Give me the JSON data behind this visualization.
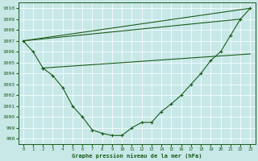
{
  "background_color": "#c8e8e8",
  "grid_color": "#ffffff",
  "line_color": "#1a5c1a",
  "ylim": [
    997.5,
    1010.5
  ],
  "xlim": [
    -0.5,
    23.5
  ],
  "yticks": [
    998,
    999,
    1000,
    1001,
    1002,
    1003,
    1004,
    1005,
    1006,
    1007,
    1008,
    1009,
    1010
  ],
  "xticks": [
    0,
    1,
    2,
    3,
    4,
    5,
    6,
    7,
    8,
    9,
    10,
    11,
    12,
    13,
    14,
    15,
    16,
    17,
    18,
    19,
    20,
    21,
    22,
    23
  ],
  "xlabel": "Graphe pression niveau de la mer (hPa)",
  "series_dip": {
    "x": [
      2,
      3,
      4,
      5,
      6,
      7,
      8,
      9,
      10,
      11,
      12,
      13,
      14,
      15,
      16,
      17,
      18,
      19,
      20,
      21,
      22,
      23
    ],
    "y": [
      1004.5,
      1003.8,
      1002.7,
      1001.0,
      1000.0,
      998.8,
      998.5,
      998.3,
      998.3,
      999.0,
      999.5,
      999.5,
      1000.5,
      1001.2,
      1002.0,
      1003.0,
      1004.0,
      1005.2,
      1006.0,
      1007.5,
      1009.0,
      1010.0
    ]
  },
  "series_upper_long": {
    "x": [
      0,
      23
    ],
    "y": [
      1007.0,
      1010.0
    ]
  },
  "series_upper_mid": {
    "x": [
      0,
      22
    ],
    "y": [
      1007.0,
      1009.0
    ]
  },
  "series_flat": {
    "x": [
      2,
      23
    ],
    "y": [
      1004.5,
      1005.8
    ]
  },
  "series_start": {
    "x": [
      0,
      1,
      2
    ],
    "y": [
      1007.0,
      1006.0,
      1004.5
    ]
  }
}
